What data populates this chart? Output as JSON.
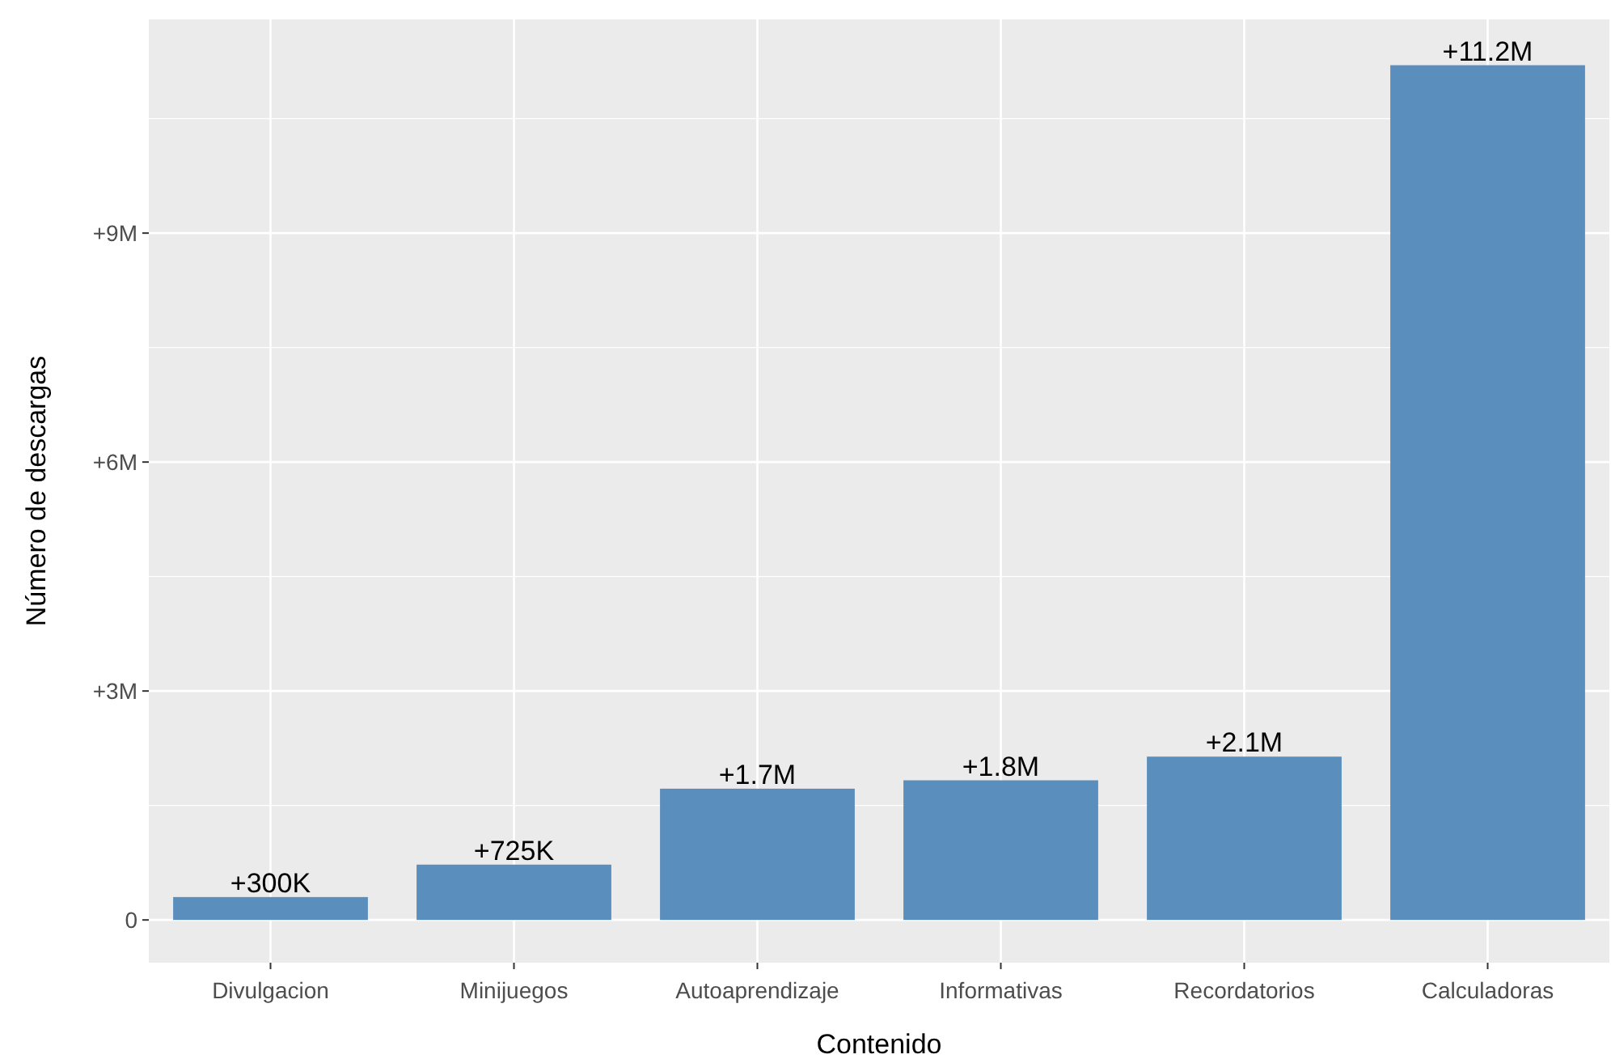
{
  "chart_data": {
    "type": "bar",
    "xlabel": "Contenido",
    "ylabel": "Número de descargas",
    "categories": [
      "Divulgacion",
      "Minijuegos",
      "Autoaprendizaje",
      "Informativas",
      "Recordatorios",
      "Calculadoras"
    ],
    "values": [
      300000,
      725000,
      1720000,
      1830000,
      2140000,
      11200000
    ],
    "value_labels": [
      "+300K",
      "+725K",
      "+1.7M",
      "+1.8M",
      "+2.1M",
      "+11.2M"
    ],
    "color": "#5a8fbd",
    "ylim": [
      -560000,
      11800000
    ],
    "yticks": [
      {
        "value": 0,
        "label": "0"
      },
      {
        "value": 3000000,
        "label": "+3M"
      },
      {
        "value": 6000000,
        "label": "+6M"
      },
      {
        "value": 9000000,
        "label": "+9M"
      }
    ],
    "grid": true
  }
}
